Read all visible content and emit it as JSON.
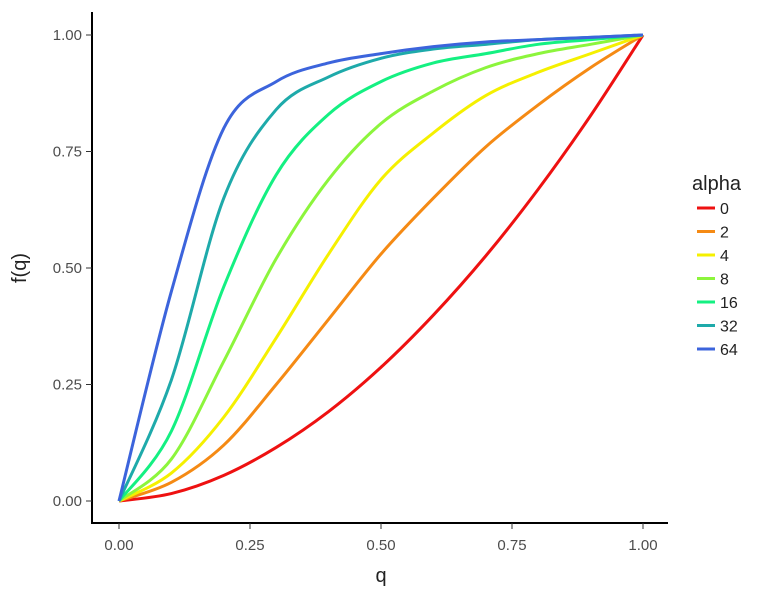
{
  "chart_data": {
    "type": "line",
    "x_label": "q",
    "y_label": "f(q)",
    "legend_title": "alpha",
    "x": [
      0,
      0.1,
      0.2,
      0.3,
      0.4,
      0.5,
      0.6,
      0.7,
      0.8,
      0.9,
      1
    ],
    "xlim": [
      0,
      1
    ],
    "ylim": [
      0,
      1
    ],
    "xticks": [
      {
        "value": 0,
        "label": "0.00"
      },
      {
        "value": 0.25,
        "label": "0.25"
      },
      {
        "value": 0.5,
        "label": "0.50"
      },
      {
        "value": 0.75,
        "label": "0.75"
      },
      {
        "value": 1,
        "label": "1.00"
      }
    ],
    "yticks": [
      {
        "value": 0,
        "label": "0.00"
      },
      {
        "value": 0.25,
        "label": "0.25"
      },
      {
        "value": 0.5,
        "label": "0.50"
      },
      {
        "value": 0.75,
        "label": "0.75"
      },
      {
        "value": 1,
        "label": "1.00"
      }
    ],
    "series": [
      {
        "name": "0",
        "color": "#ee1111",
        "values": [
          0,
          0.016,
          0.055,
          0.115,
          0.192,
          0.287,
          0.399,
          0.526,
          0.669,
          0.827,
          1
        ]
      },
      {
        "name": "2",
        "color": "#f58a14",
        "values": [
          0,
          0.04,
          0.12,
          0.25,
          0.39,
          0.53,
          0.65,
          0.76,
          0.85,
          0.93,
          1
        ]
      },
      {
        "name": "4",
        "color": "#f5f000",
        "values": [
          0,
          0.06,
          0.18,
          0.35,
          0.53,
          0.69,
          0.79,
          0.87,
          0.92,
          0.96,
          1
        ]
      },
      {
        "name": "8",
        "color": "#8cf53c",
        "values": [
          0,
          0.09,
          0.3,
          0.52,
          0.69,
          0.81,
          0.88,
          0.93,
          0.96,
          0.98,
          1
        ]
      },
      {
        "name": "16",
        "color": "#14f082",
        "values": [
          0,
          0.15,
          0.46,
          0.7,
          0.83,
          0.9,
          0.94,
          0.96,
          0.98,
          0.99,
          1
        ]
      },
      {
        "name": "32",
        "color": "#1eaaaa",
        "values": [
          0,
          0.26,
          0.65,
          0.84,
          0.91,
          0.95,
          0.97,
          0.98,
          0.99,
          0.995,
          1
        ]
      },
      {
        "name": "64",
        "color": "#3c64dc",
        "values": [
          0,
          0.45,
          0.8,
          0.9,
          0.94,
          0.96,
          0.975,
          0.985,
          0.99,
          0.995,
          1
        ]
      }
    ]
  }
}
